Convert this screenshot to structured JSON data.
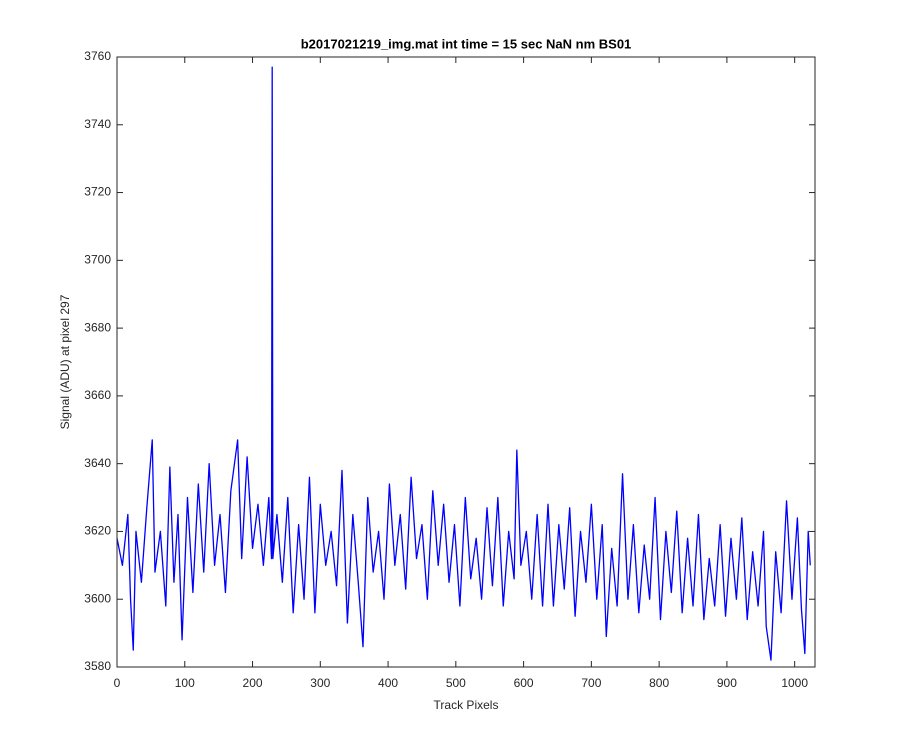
{
  "chart_data": {
    "type": "line",
    "title": "b2017021219_img.mat int time = 15 sec  NaN nm BS01",
    "xlabel": "Track Pixels",
    "ylabel": "Signal (ADU) at pixel 297",
    "xlim": [
      0,
      1030
    ],
    "ylim": [
      3580,
      3760
    ],
    "xticks": [
      0,
      100,
      200,
      300,
      400,
      500,
      600,
      700,
      800,
      900,
      1000
    ],
    "yticks": [
      3580,
      3600,
      3620,
      3640,
      3660,
      3680,
      3700,
      3720,
      3740,
      3760
    ],
    "grid": false,
    "x": [
      0,
      8,
      16,
      20,
      24,
      28,
      36,
      44,
      52,
      56,
      64,
      72,
      78,
      84,
      90,
      96,
      104,
      112,
      120,
      128,
      136,
      144,
      152,
      160,
      168,
      178,
      184,
      192,
      200,
      208,
      216,
      224,
      228,
      229,
      230,
      236,
      244,
      252,
      260,
      268,
      276,
      284,
      292,
      300,
      308,
      316,
      324,
      332,
      340,
      348,
      356,
      363,
      370,
      378,
      386,
      394,
      402,
      410,
      418,
      426,
      434,
      442,
      450,
      458,
      466,
      474,
      482,
      490,
      498,
      506,
      514,
      522,
      530,
      538,
      546,
      554,
      562,
      570,
      578,
      586,
      590,
      596,
      604,
      612,
      620,
      628,
      636,
      644,
      652,
      660,
      668,
      676,
      684,
      692,
      700,
      708,
      716,
      722,
      730,
      738,
      746,
      754,
      762,
      770,
      778,
      786,
      794,
      802,
      810,
      818,
      826,
      834,
      842,
      850,
      858,
      866,
      874,
      882,
      890,
      898,
      906,
      914,
      922,
      930,
      938,
      946,
      954,
      958,
      965,
      972,
      980,
      988,
      996,
      1004,
      1010,
      1015,
      1020,
      1023
    ],
    "series": [
      {
        "name": "signal",
        "color": "#0000ff",
        "values": [
          3618,
          3610,
          3625,
          3600,
          3585,
          3620,
          3605,
          3627,
          3647,
          3608,
          3620,
          3598,
          3639,
          3605,
          3625,
          3588,
          3630,
          3602,
          3634,
          3608,
          3640,
          3610,
          3625,
          3602,
          3632,
          3647,
          3612,
          3642,
          3615,
          3628,
          3610,
          3630,
          3612,
          3757,
          3612,
          3625,
          3605,
          3630,
          3596,
          3622,
          3600,
          3636,
          3596,
          3628,
          3610,
          3620,
          3604,
          3638,
          3593,
          3625,
          3605,
          3586,
          3630,
          3608,
          3620,
          3600,
          3634,
          3610,
          3625,
          3603,
          3636,
          3612,
          3622,
          3600,
          3632,
          3610,
          3628,
          3605,
          3622,
          3598,
          3630,
          3606,
          3618,
          3600,
          3627,
          3604,
          3630,
          3598,
          3620,
          3606,
          3644,
          3610,
          3620,
          3600,
          3625,
          3598,
          3628,
          3598,
          3622,
          3603,
          3627,
          3595,
          3620,
          3605,
          3628,
          3600,
          3622,
          3589,
          3615,
          3598,
          3637,
          3600,
          3622,
          3596,
          3616,
          3600,
          3630,
          3594,
          3620,
          3602,
          3626,
          3596,
          3618,
          3598,
          3625,
          3594,
          3612,
          3598,
          3622,
          3595,
          3618,
          3600,
          3624,
          3594,
          3614,
          3598,
          3620,
          3592,
          3582,
          3614,
          3596,
          3629,
          3600,
          3624,
          3597,
          3584,
          3620,
          3610
        ]
      }
    ]
  }
}
